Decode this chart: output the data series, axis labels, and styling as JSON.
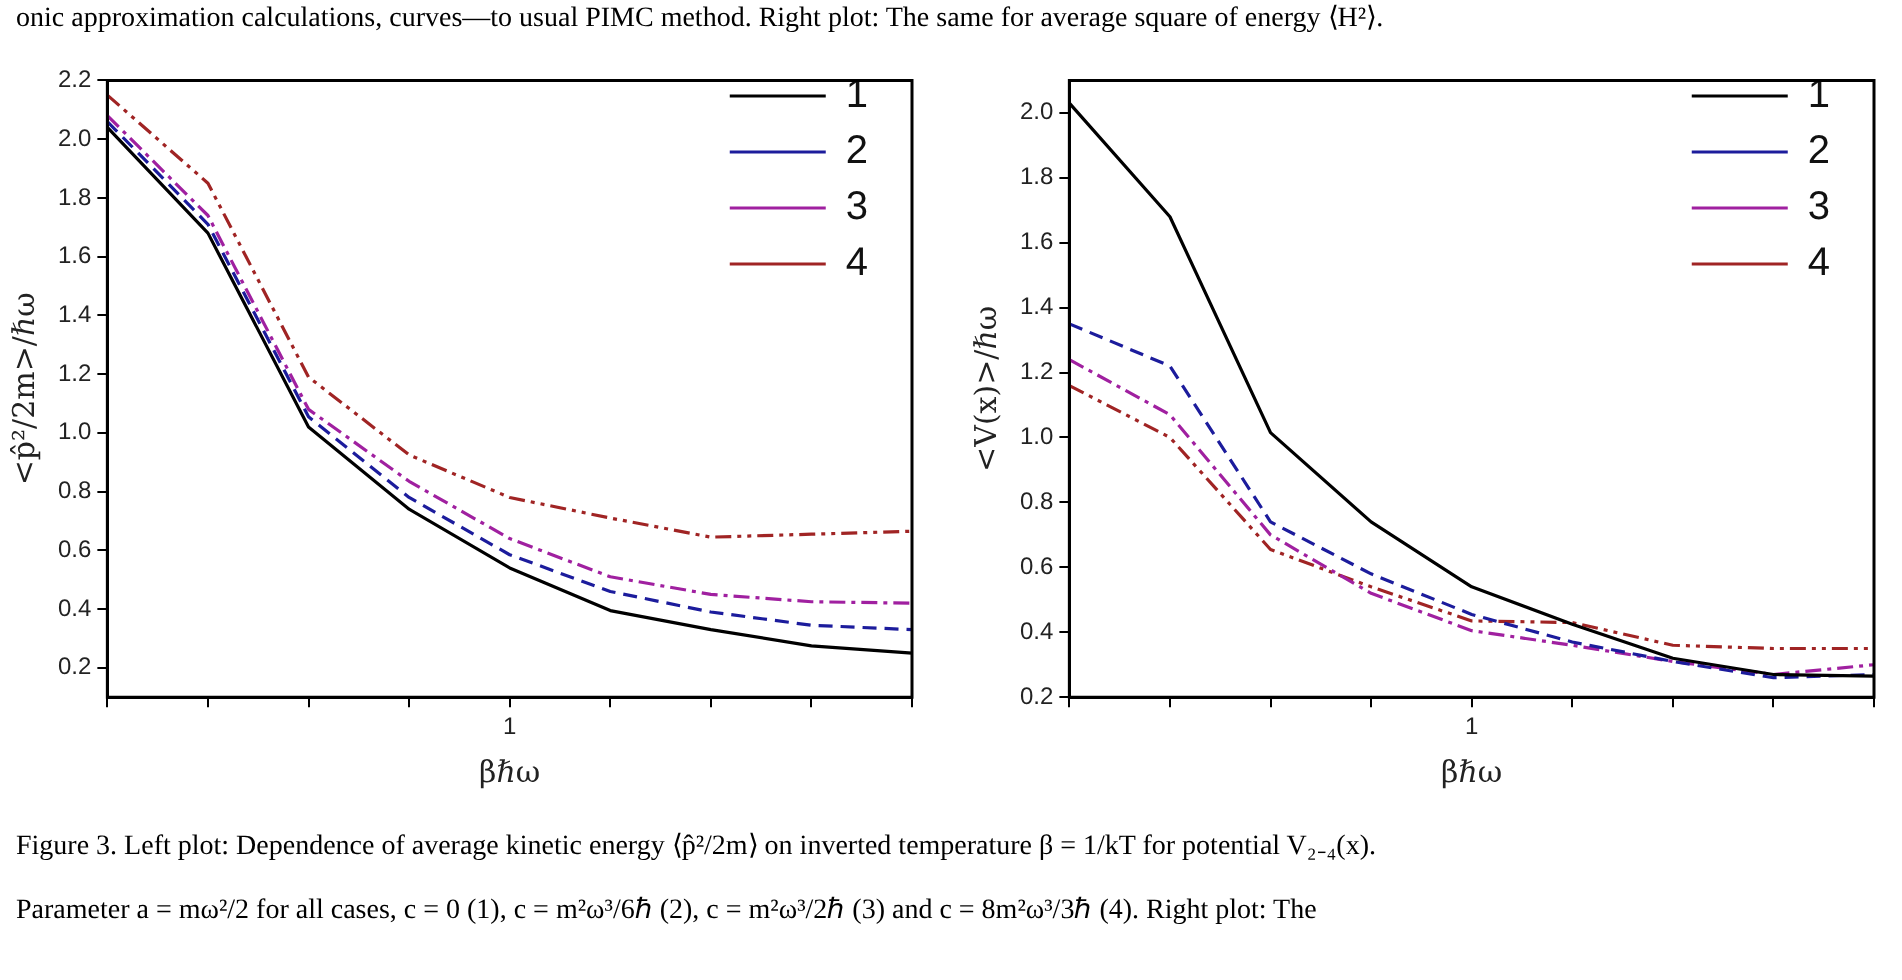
{
  "chart_data": [
    {
      "type": "line",
      "xlabel": "βℏω",
      "ylabel": "<p̂²/2m>/ℏω",
      "legend": "top right",
      "annotations": [
        "onic approximation calculations, curves—to usual PIMC method. Right plot: The same for average square of energy ⟨H²⟩.",
        "Figure 3. Left plot: Dependence of average kinetic energy ⟨p̂²/2m⟩ on inverted temperature β = 1/kT for potential V₂₋₄(x).",
        "Parameter a = mω²/2 for all cases, c = 0 (1), c = m²ω³/6ℏ (2), c = m²ω³/2ℏ (3) and c = 8m²ω³/3ℏ (4). Right plot: The"
      ],
      "categories": [
        null,
        null,
        null,
        null,
        "1",
        null,
        null,
        null,
        null
      ],
      "ylim": [
        0.1,
        2.2
      ],
      "yticks": [
        {
          "value": 0.2,
          "label": "0.2"
        },
        {
          "value": 0.4,
          "label": "0.4"
        },
        {
          "value": 0.6,
          "label": "0.6"
        },
        {
          "value": 0.8,
          "label": "0.8"
        },
        {
          "value": 1,
          "label": "1.0"
        },
        {
          "value": 1.2,
          "label": "1.2"
        },
        {
          "value": 1.4,
          "label": "1.4"
        },
        {
          "value": 1.6,
          "label": "1.6"
        },
        {
          "value": 1.8,
          "label": "1.8"
        },
        {
          "value": 2,
          "label": "2.0"
        },
        {
          "value": 2.2,
          "label": "2.2"
        }
      ],
      "series": [
        {
          "name": "1",
          "color": "#000000",
          "line_style": "solid",
          "values": [
            2.04,
            1.68,
            1.02,
            0.74,
            0.54,
            0.395,
            0.33,
            0.275,
            0.25
          ]
        },
        {
          "name": "2",
          "color": "#1c1c9c",
          "line_style": "dashed",
          "values": [
            2.06,
            1.71,
            1.055,
            0.78,
            0.585,
            0.46,
            0.39,
            0.345,
            0.33
          ]
        },
        {
          "name": "3",
          "color": "#a020a0",
          "line_style": "dashdot",
          "values": [
            2.08,
            1.74,
            1.08,
            0.835,
            0.64,
            0.51,
            0.45,
            0.425,
            0.42
          ]
        },
        {
          "name": "4",
          "color": "#a02424",
          "line_style": "dashdotdot",
          "values": [
            2.15,
            1.85,
            1.19,
            0.925,
            0.78,
            0.71,
            0.645,
            0.655,
            0.665
          ]
        }
      ]
    },
    {
      "type": "line",
      "xlabel": "βℏω",
      "ylabel": "<V(x)>/ℏω",
      "legend": "top right",
      "categories": [
        null,
        null,
        null,
        null,
        "1",
        null,
        null,
        null,
        null
      ],
      "ylim": [
        0.2,
        2.1
      ],
      "yticks": [
        {
          "value": 0.2,
          "label": "0.2"
        },
        {
          "value": 0.4,
          "label": "0.4"
        },
        {
          "value": 0.6,
          "label": "0.6"
        },
        {
          "value": 0.8,
          "label": "0.8"
        },
        {
          "value": 1,
          "label": "1.0"
        },
        {
          "value": 1.2,
          "label": "1.2"
        },
        {
          "value": 1.4,
          "label": "1.4"
        },
        {
          "value": 1.6,
          "label": "1.6"
        },
        {
          "value": 1.8,
          "label": "1.8"
        },
        {
          "value": 2,
          "label": "2.0"
        }
      ],
      "series": [
        {
          "name": "1",
          "color": "#000000",
          "line_style": "solid",
          "values": [
            2.03,
            1.68,
            1.015,
            0.74,
            0.54,
            0.425,
            0.32,
            0.27,
            0.265
          ]
        },
        {
          "name": "2",
          "color": "#1c1c9c",
          "line_style": "dashed",
          "values": [
            1.35,
            1.22,
            0.74,
            0.58,
            0.455,
            0.37,
            0.31,
            0.26,
            0.27
          ]
        },
        {
          "name": "3",
          "color": "#a020a0",
          "line_style": "dashdot",
          "values": [
            1.24,
            1.07,
            0.7,
            0.52,
            0.405,
            0.36,
            0.31,
            0.27,
            0.3
          ]
        },
        {
          "name": "4",
          "color": "#a02424",
          "line_style": "dashdotdot",
          "values": [
            1.16,
            1.0,
            0.655,
            0.54,
            0.435,
            0.43,
            0.36,
            0.35,
            0.35
          ]
        }
      ]
    }
  ]
}
